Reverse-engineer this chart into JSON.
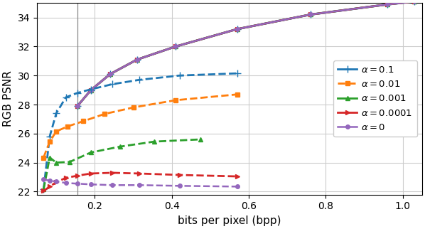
{
  "xlabel": "bits per pixel (bpp)",
  "ylabel": "RGB PSNR",
  "xlim": [
    0.05,
    1.05
  ],
  "ylim": [
    21.8,
    35.0
  ],
  "yticks": [
    22,
    24,
    26,
    28,
    30,
    32,
    34
  ],
  "xticks": [
    0.2,
    0.4,
    0.6,
    0.8,
    1.0
  ],
  "vline_x": 0.155,
  "background_color": "#ffffff",
  "grid_color": "#cccccc",
  "solid_bundle_x": [
    0.155,
    0.19,
    0.24,
    0.31,
    0.41,
    0.57,
    0.76,
    0.96,
    1.03
  ],
  "solid_bundle_y": [
    27.9,
    29.0,
    30.1,
    31.1,
    32.0,
    33.2,
    34.2,
    34.9,
    35.1
  ],
  "blue_label": "$\\alpha = 0.1$",
  "blue_color": "#1f77b4",
  "blue_dashed_x": [
    0.067,
    0.083,
    0.1,
    0.125,
    0.155,
    0.19,
    0.245,
    0.315,
    0.42,
    0.57
  ],
  "blue_dashed_y": [
    22.15,
    25.8,
    27.4,
    28.5,
    28.8,
    29.05,
    29.4,
    29.7,
    30.0,
    30.15
  ],
  "orange_label": "$\\alpha = 0.01$",
  "orange_color": "#ff7f0e",
  "orange_dashed_x": [
    0.067,
    0.083,
    0.1,
    0.13,
    0.17,
    0.225,
    0.3,
    0.41,
    0.57
  ],
  "orange_dashed_y": [
    24.35,
    25.45,
    26.15,
    26.5,
    26.85,
    27.35,
    27.8,
    28.3,
    28.7
  ],
  "green_label": "$\\alpha = 0.001$",
  "green_color": "#2ca02c",
  "green_dashed_x": [
    0.067,
    0.083,
    0.1,
    0.135,
    0.19,
    0.265,
    0.355,
    0.475
  ],
  "green_dashed_y": [
    22.15,
    24.35,
    24.0,
    24.05,
    24.7,
    25.1,
    25.45,
    25.6
  ],
  "red_label": "$\\alpha = 0.0001$",
  "red_color": "#d62728",
  "red_dashed_x": [
    0.067,
    0.083,
    0.1,
    0.125,
    0.155,
    0.19,
    0.245,
    0.315,
    0.42,
    0.57
  ],
  "red_dashed_y": [
    22.05,
    22.35,
    22.65,
    22.95,
    23.1,
    23.25,
    23.3,
    23.25,
    23.15,
    23.05
  ],
  "purple_label": "$\\alpha = 0$",
  "purple_color": "#9467bd",
  "purple_dashed_x": [
    0.067,
    0.083,
    0.1,
    0.125,
    0.155,
    0.19,
    0.245,
    0.315,
    0.42,
    0.57
  ],
  "purple_dashed_y": [
    22.85,
    22.75,
    22.7,
    22.6,
    22.55,
    22.5,
    22.45,
    22.45,
    22.4,
    22.35
  ],
  "solid_colors": [
    "#1f77b4",
    "#2ca02c",
    "#d62728",
    "#9467bd"
  ],
  "solid_markers": [
    "+",
    "^",
    ">",
    "o"
  ],
  "solid_markersizes": [
    7,
    5,
    5,
    4
  ],
  "solid_linewidths": [
    2.2,
    2.0,
    2.0,
    1.8
  ]
}
